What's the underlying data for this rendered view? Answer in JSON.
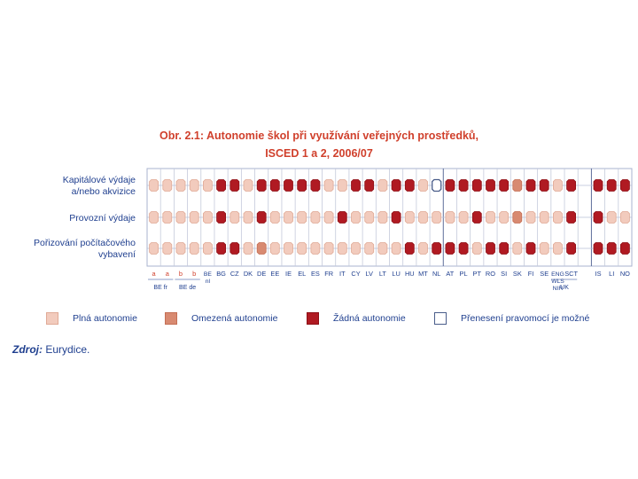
{
  "title_line1": "Obr. 2.1: Autonomie škol při využívání veřejných prostředků,",
  "title_line2": "ISCED 1 a 2, 2006/07",
  "chart_data": {
    "type": "table",
    "row_labels": [
      [
        "Kapitálové výdaje",
        "a/nebo akvizice"
      ],
      [
        "Provozní výdaje"
      ],
      [
        "Pořizování počítačového",
        "vybavení"
      ]
    ],
    "columns": [
      "a",
      "a",
      "b",
      "b",
      "BE nl",
      "BG",
      "CZ",
      "DK",
      "DE",
      "EE",
      "IE",
      "EL",
      "ES",
      "FR",
      "IT",
      "CY",
      "LV",
      "LT",
      "LU",
      "HU",
      "MT",
      "NL",
      "AT",
      "PL",
      "PT",
      "RO",
      "SI",
      "SK",
      "FI",
      "SE",
      "ENG WLS NIR",
      "SCT",
      "",
      "IS",
      "LI",
      "NO"
    ],
    "column_groups": [
      {
        "label": "BE fr",
        "start": 0,
        "end": 1
      },
      {
        "label": "BE de",
        "start": 2,
        "end": 3
      },
      {
        "label": "UK",
        "start": 30,
        "end": 31
      }
    ],
    "legend_codes": {
      "F": "full",
      "L": "limited",
      "N": "none",
      "D": "delegated",
      "-": "empty"
    },
    "cells": [
      [
        "F",
        "F",
        "F",
        "F",
        "F",
        "N",
        "N",
        "F",
        "N",
        "N",
        "N",
        "N",
        "N",
        "F",
        "F",
        "N",
        "N",
        "F",
        "N",
        "N",
        "F",
        "D",
        "N",
        "N",
        "N",
        "N",
        "N",
        "L",
        "N",
        "N",
        "F",
        "N",
        "-",
        "N",
        "N",
        "N"
      ],
      [
        "F",
        "F",
        "F",
        "F",
        "F",
        "N",
        "F",
        "F",
        "N",
        "F",
        "F",
        "F",
        "F",
        "F",
        "N",
        "F",
        "F",
        "F",
        "N",
        "F",
        "F",
        "F",
        "F",
        "F",
        "N",
        "F",
        "F",
        "L",
        "F",
        "F",
        "F",
        "N",
        "-",
        "N",
        "F",
        "F"
      ],
      [
        "F",
        "F",
        "F",
        "F",
        "F",
        "N",
        "N",
        "F",
        "L",
        "F",
        "F",
        "F",
        "F",
        "F",
        "F",
        "F",
        "F",
        "F",
        "F",
        "N",
        "F",
        "N",
        "N",
        "N",
        "F",
        "N",
        "N",
        "F",
        "N",
        "F",
        "F",
        "N",
        "-",
        "N",
        "N",
        "N"
      ]
    ]
  },
  "legend": [
    {
      "label": "Plná autonomie",
      "color": "#f2cbbd",
      "border": "#e0aa96"
    },
    {
      "label": "Omezená autonomie",
      "color": "#d88a71",
      "border": "#c46f55"
    },
    {
      "label": "Žádná autonomie",
      "color": "#b01a22",
      "border": "#8e0f16"
    },
    {
      "label": "Přenesení pravomocí je možné",
      "color": "#ffffff",
      "border": "#4a5d8a"
    }
  ],
  "source_label": "Zdroj:",
  "source_text": " Eurydice."
}
